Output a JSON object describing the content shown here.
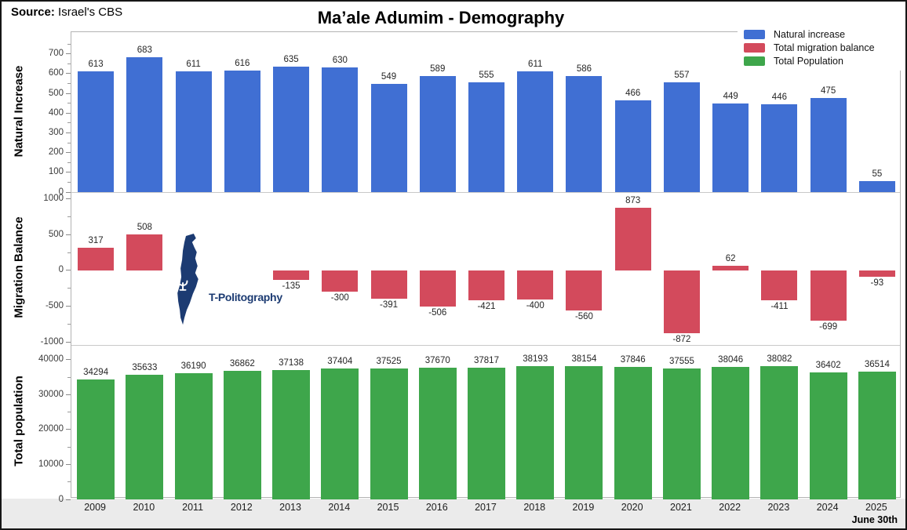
{
  "source": {
    "label": "Source:",
    "value": "Israel's CBS"
  },
  "footnote": "June 30th",
  "watermark": {
    "text": "T-Politography"
  },
  "legend": [
    {
      "id": "natural-increase",
      "label": "Natural increase",
      "color": "#406fd3"
    },
    {
      "id": "migration-balance",
      "label": "Total migration balance",
      "color": "#d34a5c"
    },
    {
      "id": "total-population",
      "label": "Total Population",
      "color": "#3ea64b"
    }
  ],
  "chart_data": {
    "type": "bar",
    "title": "Ma’ale Adumim - Demography",
    "categories": [
      "2009",
      "2010",
      "2011",
      "2012",
      "2013",
      "2014",
      "2015",
      "2016",
      "2017",
      "2018",
      "2019",
      "2020",
      "2021",
      "2022",
      "2023",
      "2024",
      "2025"
    ],
    "x_note": "June 30th",
    "grid": false,
    "legend_position": "top-right",
    "panels": [
      {
        "id": "natural-increase",
        "axis_label": "Natural Increase",
        "color": "#406fd3",
        "ylim": [
          0,
          810
        ],
        "yticks": [
          0,
          100,
          200,
          300,
          400,
          500,
          600,
          700
        ],
        "values": [
          613,
          683,
          611,
          616,
          635,
          630,
          549,
          589,
          555,
          611,
          586,
          466,
          557,
          449,
          446,
          475,
          55
        ]
      },
      {
        "id": "migration-balance",
        "axis_label": "Migration Balance",
        "color": "#d34a5c",
        "ylim": [
          -1050,
          1082
        ],
        "yticks": [
          -1000,
          -500,
          0,
          500,
          1000
        ],
        "values": [
          317,
          508,
          null,
          null,
          -135,
          -300,
          -391,
          -506,
          -421,
          -400,
          -560,
          873,
          -872,
          62,
          -411,
          -699,
          -93
        ]
      },
      {
        "id": "total-population",
        "axis_label": "Total population",
        "color": "#3ea64b",
        "ylim": [
          0,
          44000
        ],
        "yticks": [
          0,
          10000,
          20000,
          30000,
          40000
        ],
        "values": [
          34294,
          35633,
          36190,
          36862,
          37138,
          37404,
          37525,
          37670,
          37817,
          38193,
          38154,
          37846,
          37555,
          38046,
          38082,
          36402,
          36514
        ]
      }
    ]
  }
}
